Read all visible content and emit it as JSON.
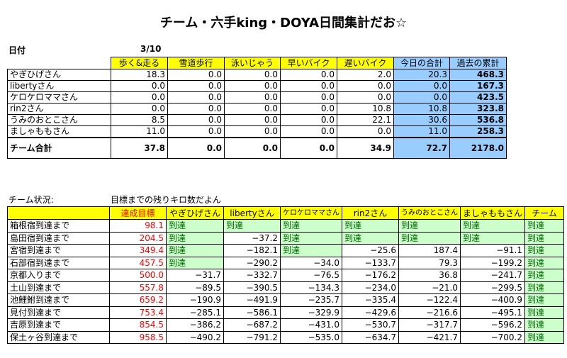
{
  "title": "チーム・六手king・DOYA日間集計だお☆",
  "date_label": "日付",
  "date_value": "3/10",
  "summary": {
    "headers": [
      "歩く&走る",
      "雪道歩行",
      "泳いじゃう",
      "早いバイク",
      "遅いバイク",
      "今日の合計",
      "過去の累計"
    ],
    "rows": [
      {
        "name": "やぎひげさん",
        "values": [
          "18.3",
          "0.0",
          "0.0",
          "0.0",
          "2.0",
          "20.3",
          "468.3"
        ]
      },
      {
        "name": "libertyさん",
        "values": [
          "0.0",
          "0.0",
          "0.0",
          "0.0",
          "0.0",
          "0.0",
          "167.3"
        ]
      },
      {
        "name": "ケロケロママさん",
        "values": [
          "0.0",
          "0.0",
          "0.0",
          "0.0",
          "0.0",
          "0.0",
          "423.5"
        ]
      },
      {
        "name": "rin2さん",
        "values": [
          "0.0",
          "0.0",
          "0.0",
          "0.0",
          "10.8",
          "10.8",
          "323.8"
        ]
      },
      {
        "name": "うみのおとこさん",
        "values": [
          "8.5",
          "0.0",
          "0.0",
          "0.0",
          "22.1",
          "30.6",
          "536.8"
        ]
      },
      {
        "name": "ましゃももさん",
        "values": [
          "11.0",
          "0.0",
          "0.0",
          "0.0",
          "0.0",
          "11.0",
          "258.3"
        ]
      }
    ],
    "total": {
      "name": "チーム合計",
      "values": [
        "37.8",
        "0.0",
        "0.0",
        "0.0",
        "34.9",
        "72.7",
        "2178.0"
      ]
    }
  },
  "status_label": "チーム状況:",
  "status_caption": "目標までの残りキロ数だよん",
  "status": {
    "headers": [
      "達成目標",
      "やぎひげさん",
      "libertyさん",
      "ケロケロママさん",
      "rin2さん",
      "うみのおとこさん",
      "ましゃももさん",
      "チーム"
    ],
    "rows": [
      {
        "name": "箱根宿到達まで",
        "target": "98.1",
        "cells": [
          "到達",
          "到達",
          "到達",
          "到達",
          "到達",
          "到達",
          "到達"
        ]
      },
      {
        "name": "島田宿到達まで",
        "target": "204.5",
        "cells": [
          "到達",
          "−37.2",
          "到達",
          "到達",
          "到達",
          "到達",
          "到達"
        ]
      },
      {
        "name": "宮宿到達まで",
        "target": "349.4",
        "cells": [
          "到達",
          "−182.1",
          "到達",
          "−25.6",
          "187.4",
          "−91.1",
          "到達"
        ]
      },
      {
        "name": "石部宿到達まで",
        "target": "457.5",
        "cells": [
          "到達",
          "−290.2",
          "−34.0",
          "−133.7",
          "79.3",
          "−199.2",
          "到達"
        ]
      },
      {
        "name": "京都入りまで",
        "target": "500.0",
        "cells": [
          "−31.7",
          "−332.7",
          "−76.5",
          "−176.2",
          "36.8",
          "−241.7",
          "到達"
        ]
      },
      {
        "name": "土山到達まで",
        "target": "557.8",
        "cells": [
          "−89.5",
          "−390.5",
          "−134.3",
          "−234.0",
          "−21.0",
          "−299.5",
          "到達"
        ]
      },
      {
        "name": "池鯉鮒到達まで",
        "target": "659.2",
        "cells": [
          "−190.9",
          "−491.9",
          "−235.7",
          "−335.4",
          "−122.4",
          "−400.9",
          "到達"
        ]
      },
      {
        "name": "見付到達まで",
        "target": "753.4",
        "cells": [
          "−285.1",
          "−586.1",
          "−329.9",
          "−429.6",
          "−216.6",
          "−495.1",
          "到達"
        ]
      },
      {
        "name": "吉原到達まで",
        "target": "854.5",
        "cells": [
          "−386.2",
          "−687.2",
          "−431.0",
          "−530.7",
          "−317.7",
          "−596.2",
          "到達"
        ]
      },
      {
        "name": "保土ヶ谷到達まで",
        "target": "958.5",
        "cells": [
          "−490.2",
          "−791.2",
          "−535.0",
          "−634.7",
          "−421.7",
          "−700.2",
          "到達"
        ]
      }
    ]
  },
  "colors": {
    "header": "#ffff00",
    "highlight": "#99ccff",
    "reached": "#ccffcc",
    "target_text": "#ff0000"
  }
}
